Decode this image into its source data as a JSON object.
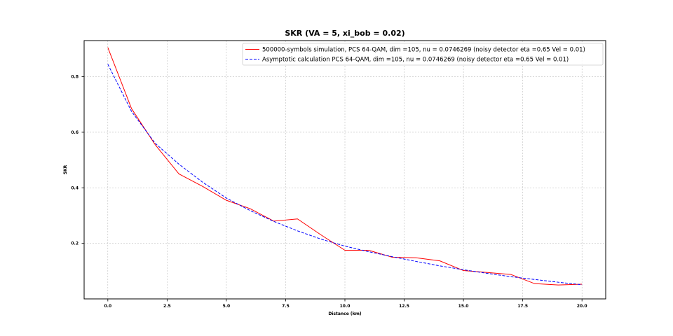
{
  "chart_data": {
    "type": "line",
    "title": "SKR (VA = 5, xi_bob = 0.02)",
    "xlabel": "Distance (km)",
    "ylabel": "SKR",
    "xlim": [
      -1.0,
      21.0
    ],
    "ylim": [
      0.0,
      0.93
    ],
    "xticks": [
      0.0,
      2.5,
      5.0,
      7.5,
      10.0,
      12.5,
      15.0,
      17.5,
      20.0
    ],
    "xtick_labels": [
      "0.0",
      "2.5",
      "5.0",
      "7.5",
      "10.0",
      "12.5",
      "15.0",
      "17.5",
      "20.0"
    ],
    "yticks": [
      0.2,
      0.4,
      0.6,
      0.8
    ],
    "ytick_labels": [
      "0.2",
      "0.4",
      "0.6",
      "0.8"
    ],
    "grid": true,
    "legend_position": "top-right",
    "series": [
      {
        "name": "500000-symbols simulation, PCS 64-QAM, dim =105, nu = 0.0746269 (noisy detector eta =0.65 Vel = 0.01)",
        "color": "#ff0000",
        "style": "solid",
        "x": [
          0,
          1,
          2,
          3,
          4,
          5,
          6,
          7,
          8,
          9,
          10,
          11,
          12,
          13,
          14,
          15,
          16,
          17,
          18,
          19,
          20
        ],
        "values": [
          0.905,
          0.685,
          0.555,
          0.45,
          0.405,
          0.355,
          0.325,
          0.28,
          0.288,
          0.23,
          0.175,
          0.175,
          0.15,
          0.148,
          0.137,
          0.102,
          0.095,
          0.088,
          0.055,
          0.05,
          0.053
        ]
      },
      {
        "name": "Asymptotic calculation PCS 64-QAM, dim =105, nu = 0.0746269 (noisy detector eta =0.65 Vel = 0.01)",
        "color": "#0000ff",
        "style": "dashed",
        "x": [
          0,
          1,
          2,
          3,
          4,
          5,
          6,
          7,
          8,
          9,
          10,
          11,
          12,
          13,
          14,
          15,
          16,
          17,
          18,
          19,
          20
        ],
        "values": [
          0.845,
          0.675,
          0.56,
          0.485,
          0.42,
          0.363,
          0.318,
          0.279,
          0.245,
          0.215,
          0.19,
          0.17,
          0.152,
          0.135,
          0.119,
          0.105,
          0.092,
          0.08,
          0.07,
          0.06,
          0.051
        ]
      }
    ]
  }
}
